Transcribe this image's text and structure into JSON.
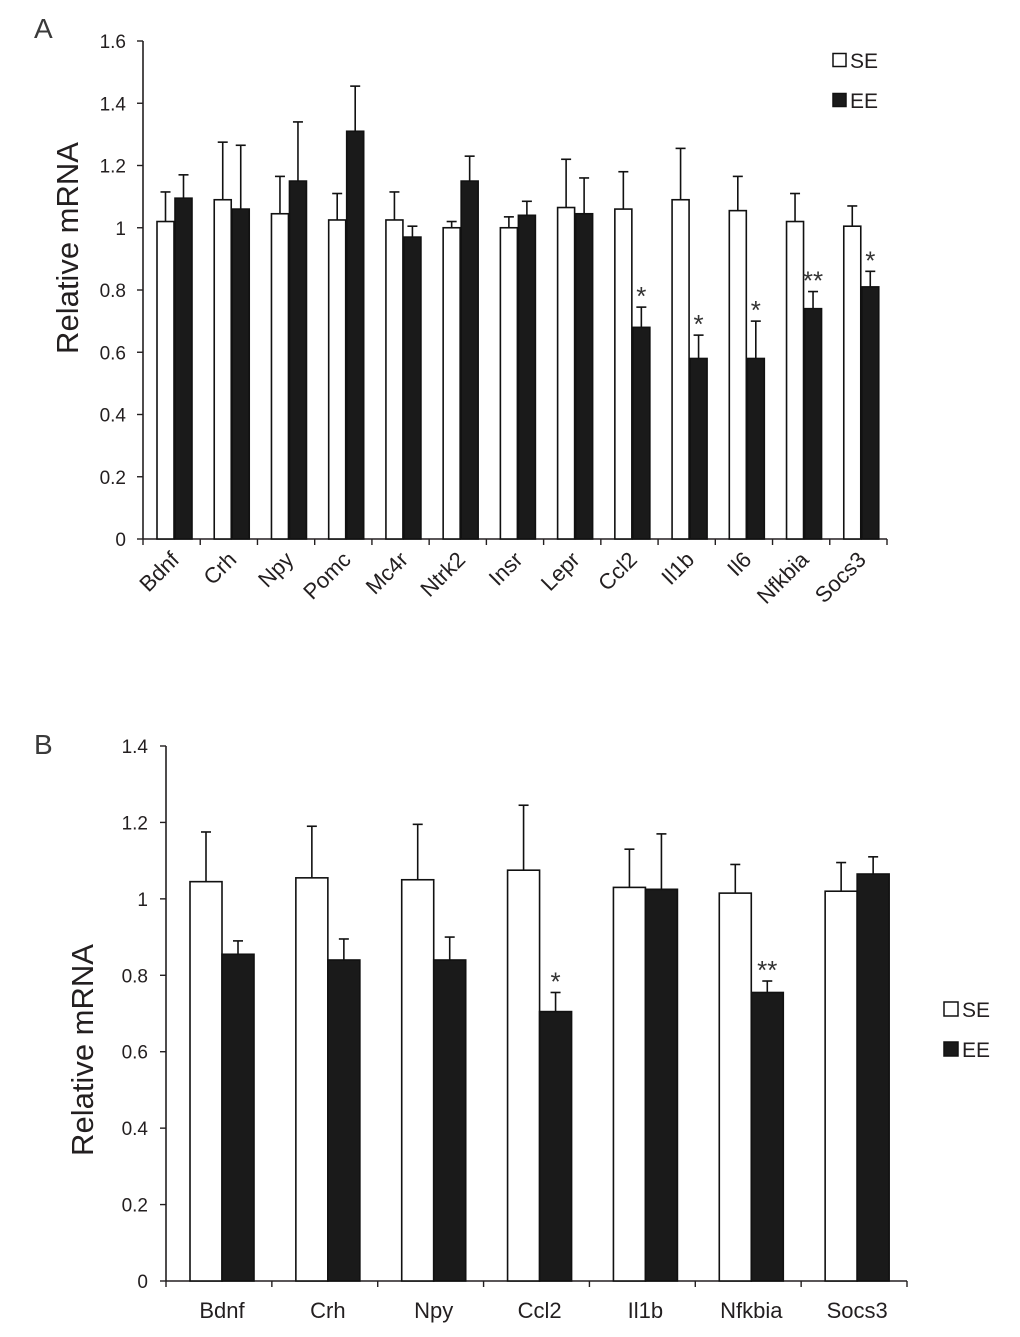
{
  "figure": {
    "legend_labels": [
      "SE",
      "EE"
    ],
    "colors": {
      "SE": "#ffffff",
      "EE": "#1a1a1a",
      "axis": "#231f20"
    }
  },
  "chart_data": [
    {
      "type": "bar",
      "panel_label": "A",
      "ylabel": "Relative mRNA",
      "xlabel": "",
      "ylim": [
        0,
        1.6
      ],
      "yticks": [
        0,
        0.2,
        0.4,
        0.6,
        0.8,
        1,
        1.2,
        1.4,
        1.6
      ],
      "ytick_labels": [
        "0",
        "0.2",
        "0.4",
        "0.6",
        "0.8",
        "1",
        "1.2",
        "1.4",
        "1.6"
      ],
      "legend": "top-right",
      "categories": [
        "Bdnf",
        "Crh",
        "Npy",
        "Pomc",
        "Mc4r",
        "Ntrk2",
        "Insr",
        "Lepr",
        "Ccl2",
        "Il1b",
        "Il6",
        "Nfkbia",
        "Socs3"
      ],
      "series": [
        {
          "name": "SE",
          "values": [
            1.02,
            1.09,
            1.045,
            1.025,
            1.025,
            1.0,
            1.0,
            1.065,
            1.06,
            1.09,
            1.055,
            1.02,
            1.005
          ],
          "errors": [
            0.095,
            0.185,
            0.12,
            0.085,
            0.09,
            0.02,
            0.035,
            0.155,
            0.12,
            0.165,
            0.11,
            0.09,
            0.065
          ]
        },
        {
          "name": "EE",
          "values": [
            1.095,
            1.06,
            1.15,
            1.31,
            0.97,
            1.15,
            1.04,
            1.045,
            0.68,
            0.58,
            0.58,
            0.74,
            0.81
          ],
          "errors": [
            0.075,
            0.205,
            0.19,
            0.145,
            0.035,
            0.08,
            0.045,
            0.115,
            0.065,
            0.075,
            0.12,
            0.055,
            0.05
          ]
        }
      ],
      "annotations": [
        {
          "category": "Ccl2",
          "text": "*"
        },
        {
          "category": "Il1b",
          "text": "*"
        },
        {
          "category": "Il6",
          "text": "*"
        },
        {
          "category": "Nfkbia",
          "text": "**"
        },
        {
          "category": "Socs3",
          "text": "*"
        }
      ]
    },
    {
      "type": "bar",
      "panel_label": "B",
      "ylabel": "Relative mRNA",
      "xlabel": "",
      "ylim": [
        0,
        1.4
      ],
      "yticks": [
        0,
        0.2,
        0.4,
        0.6,
        0.8,
        1,
        1.2,
        1.4
      ],
      "ytick_labels": [
        "0",
        "0.2",
        "0.4",
        "0.6",
        "0.8",
        "1",
        "1.2",
        "1.4"
      ],
      "legend": "right",
      "categories": [
        "Bdnf",
        "Crh",
        "Npy",
        "Ccl2",
        "Il1b",
        "Nfkbia",
        "Socs3"
      ],
      "series": [
        {
          "name": "SE",
          "values": [
            1.045,
            1.055,
            1.05,
            1.075,
            1.03,
            1.015,
            1.02
          ],
          "errors": [
            0.13,
            0.135,
            0.145,
            0.17,
            0.1,
            0.075,
            0.075
          ]
        },
        {
          "name": "EE",
          "values": [
            0.855,
            0.84,
            0.84,
            0.705,
            1.025,
            0.755,
            1.065
          ],
          "errors": [
            0.035,
            0.055,
            0.06,
            0.05,
            0.145,
            0.03,
            0.045
          ]
        }
      ],
      "annotations": [
        {
          "category": "Ccl2",
          "text": "*"
        },
        {
          "category": "Nfkbia",
          "text": "**"
        }
      ]
    }
  ]
}
